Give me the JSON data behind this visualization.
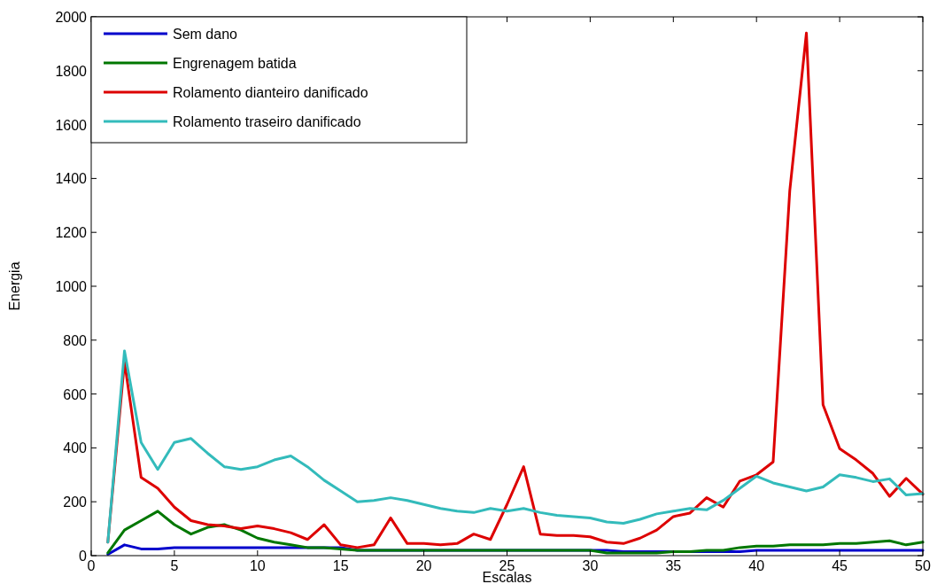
{
  "chart_data": {
    "type": "line",
    "xlabel": "Escalas",
    "ylabel": "Energia",
    "x": [
      1,
      2,
      3,
      4,
      5,
      6,
      7,
      8,
      9,
      10,
      11,
      12,
      13,
      14,
      15,
      16,
      17,
      18,
      19,
      20,
      21,
      22,
      23,
      24,
      25,
      26,
      27,
      28,
      29,
      30,
      31,
      32,
      33,
      34,
      35,
      36,
      37,
      38,
      39,
      40,
      41,
      42,
      43,
      44,
      45,
      46,
      47,
      48,
      49,
      50
    ],
    "xlim": [
      0,
      50
    ],
    "xticks": [
      0,
      5,
      10,
      15,
      20,
      25,
      30,
      35,
      40,
      45,
      50
    ],
    "ylim": [
      0,
      2000
    ],
    "yticks": [
      0,
      200,
      400,
      600,
      800,
      1000,
      1200,
      1400,
      1600,
      1800,
      2000
    ],
    "grid": false,
    "legend": "top left",
    "line_style": "solid",
    "series": [
      {
        "name": "Sem dano",
        "color": "#0000cc",
        "values": [
          5,
          40,
          25,
          25,
          30,
          30,
          30,
          30,
          30,
          30,
          30,
          30,
          30,
          30,
          30,
          20,
          20,
          20,
          20,
          20,
          20,
          20,
          20,
          20,
          20,
          20,
          20,
          20,
          20,
          20,
          20,
          15,
          15,
          15,
          15,
          15,
          15,
          15,
          15,
          20,
          20,
          20,
          20,
          20,
          20,
          20,
          20,
          20,
          20,
          20
        ]
      },
      {
        "name": "Engrenagem batida",
        "color": "#007700",
        "values": [
          10,
          95,
          130,
          165,
          115,
          80,
          105,
          115,
          95,
          65,
          50,
          40,
          30,
          30,
          25,
          20,
          20,
          20,
          20,
          20,
          20,
          20,
          20,
          20,
          20,
          20,
          20,
          20,
          20,
          20,
          10,
          10,
          10,
          10,
          15,
          15,
          20,
          20,
          30,
          35,
          35,
          40,
          40,
          40,
          45,
          45,
          50,
          55,
          40,
          50
        ]
      },
      {
        "name": "Rolamento dianteiro danificado",
        "color": "#dd0000",
        "values": [
          50,
          720,
          290,
          250,
          180,
          130,
          115,
          110,
          100,
          110,
          100,
          85,
          60,
          115,
          40,
          30,
          40,
          140,
          45,
          45,
          40,
          45,
          80,
          60,
          190,
          330,
          80,
          75,
          75,
          70,
          50,
          45,
          65,
          95,
          145,
          158,
          215,
          180,
          277,
          300,
          348,
          1355,
          1940,
          560,
          397,
          355,
          305,
          220,
          287,
          228
        ]
      },
      {
        "name": "Rolamento traseiro danificado",
        "color": "#33bbbb",
        "values": [
          50,
          760,
          420,
          320,
          420,
          435,
          380,
          330,
          320,
          330,
          355,
          370,
          330,
          280,
          240,
          200,
          205,
          215,
          205,
          190,
          175,
          165,
          160,
          175,
          165,
          175,
          160,
          150,
          145,
          140,
          125,
          120,
          135,
          155,
          165,
          175,
          170,
          205,
          250,
          295,
          270,
          255,
          240,
          255,
          300,
          290,
          275,
          285,
          225,
          230
        ]
      }
    ]
  }
}
